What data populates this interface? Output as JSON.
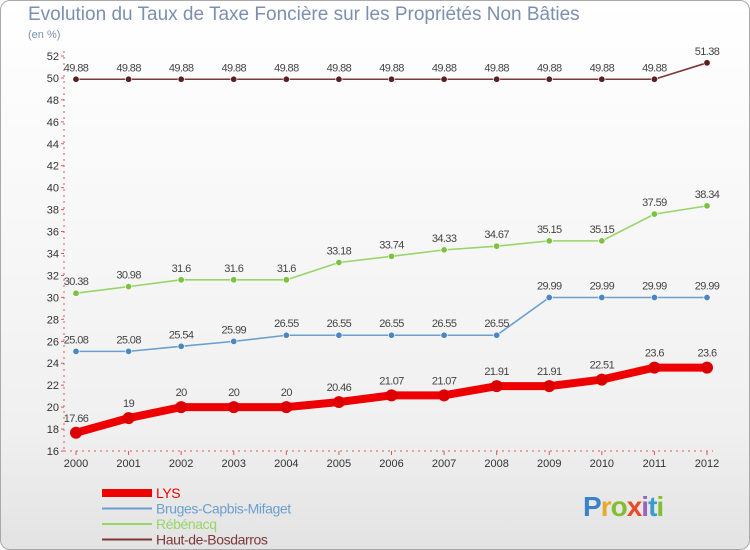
{
  "title": "Evolution du Taux de Taxe Foncière sur les Propriétés Non Bâties",
  "unit_label": "(en %)",
  "logo": {
    "letters": [
      "P",
      "r",
      "o",
      "x",
      "i",
      "t",
      "i"
    ],
    "colors": [
      "#3a83c9",
      "#e8a92e",
      "#83be32",
      "#e84a2a",
      "#9a65b8",
      "#3a9bd1",
      "#83be32"
    ]
  },
  "chart_data": {
    "type": "line",
    "title": "Evolution du Taux de Taxe Foncière sur les Propriétés Non Bâties",
    "ylabel": "(en %)",
    "xlabel": "",
    "x": [
      "2000",
      "2001",
      "2002",
      "2003",
      "2004",
      "2005",
      "2006",
      "2007",
      "2008",
      "2009",
      "2010",
      "2011",
      "2012"
    ],
    "ylim": [
      16,
      52
    ],
    "yticks": [
      16,
      18,
      20,
      22,
      24,
      26,
      28,
      30,
      32,
      34,
      36,
      38,
      40,
      42,
      44,
      46,
      48,
      50,
      52
    ],
    "grid": false,
    "legend_position": "bottom-left",
    "series": [
      {
        "name": "Haut-de-Bosdarros",
        "color": "#7b3838",
        "marker": "#5a1f1f",
        "values": [
          49.88,
          49.88,
          49.88,
          49.88,
          49.88,
          49.88,
          49.88,
          49.88,
          49.88,
          49.88,
          49.88,
          49.88,
          51.38
        ],
        "labels": [
          "49.88",
          "49.88",
          "49.88",
          "49.88",
          "49.88",
          "49.88",
          "49.88",
          "49.88",
          "49.88",
          "49.88",
          "49.88",
          "49.88",
          "51.38"
        ]
      },
      {
        "name": "Rébénacq",
        "color": "#98d468",
        "marker": "#7cc242",
        "values": [
          30.38,
          30.98,
          31.6,
          31.6,
          31.6,
          33.18,
          33.74,
          34.33,
          34.67,
          35.15,
          35.15,
          37.59,
          38.34
        ],
        "labels": [
          "30.38",
          "30.98",
          "31.6",
          "31.6",
          "31.6",
          "33.18",
          "33.74",
          "34.33",
          "34.67",
          "35.15",
          "35.15",
          "37.59",
          "38.34"
        ]
      },
      {
        "name": "Bruges-Capbis-Mifaget",
        "color": "#6a9fcf",
        "marker": "#4a86c0",
        "values": [
          25.08,
          25.08,
          25.54,
          25.99,
          26.55,
          26.55,
          26.55,
          26.55,
          26.55,
          29.99,
          29.99,
          29.99,
          29.99
        ],
        "labels": [
          "25.08",
          "25.08",
          "25.54",
          "25.99",
          "26.55",
          "26.55",
          "26.55",
          "26.55",
          "26.55",
          "29.99",
          "29.99",
          "29.99",
          "29.99"
        ]
      },
      {
        "name": "LYS",
        "color": "#ee0000",
        "marker": "#dd0000",
        "values": [
          17.66,
          19,
          20,
          20,
          20,
          20.46,
          21.07,
          21.07,
          21.91,
          21.91,
          22.51,
          23.6,
          23.6
        ],
        "labels": [
          "17.66",
          "19",
          "20",
          "20",
          "20",
          "20.46",
          "21.07",
          "21.07",
          "21.91",
          "21.91",
          "22.51",
          "23.6",
          "23.6"
        ]
      }
    ],
    "legend": [
      {
        "name": "LYS",
        "color": "#ee0000"
      },
      {
        "name": "Bruges-Capbis-Mifaget",
        "color": "#6a9fcf"
      },
      {
        "name": "Rébénacq",
        "color": "#98d468"
      },
      {
        "name": "Haut-de-Bosdarros",
        "color": "#7b3838"
      }
    ]
  }
}
